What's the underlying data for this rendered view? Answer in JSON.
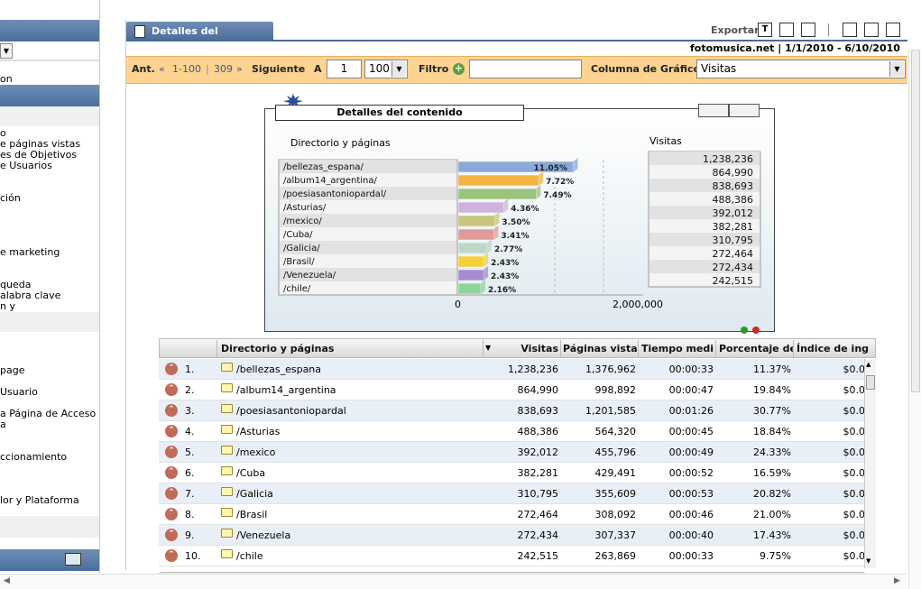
{
  "sidebar": {
    "items": [
      {
        "label": "o",
        "top": 0
      },
      {
        "label": "e páginas vistas"
      },
      {
        "label": "es de Objetivos"
      },
      {
        "label": "e Usuarios"
      },
      {
        "label": "ción"
      },
      {
        "label": "e marketing"
      },
      {
        "label": "queda"
      },
      {
        "label": "alabra clave"
      },
      {
        "label": "n y"
      },
      {
        "label": "page"
      },
      {
        "label": "Usuario"
      },
      {
        "label": "a Página de Acceso"
      },
      {
        "label": "a"
      },
      {
        "label": "ccionamiento"
      },
      {
        "label": "lor y Plataforma"
      }
    ],
    "top_label": "on"
  },
  "header": {
    "tab_title": "Detalles del contenido",
    "export_label": "Exportar",
    "site": "fotomusica.net",
    "date_range": "1/1/2010 - 6/10/2010"
  },
  "toolbar": {
    "prev_label": "Ant.",
    "range_label": "1-100",
    "total": "309",
    "next_label": "Siguiente",
    "goto_label": "A",
    "goto_value": "1",
    "page_size": "100",
    "filter_label": "Filtro",
    "filter_value": "",
    "chart_column_label": "Columna de Gráfico",
    "chart_column_value": "Visitas"
  },
  "chart_data": {
    "type": "bar",
    "title": "Detalles del contenido",
    "xlabel": "Directorio y páginas",
    "ylabel": "Visitas",
    "axis_min_label": "0",
    "axis_max_label": "2,000,000",
    "xlim": [
      0,
      2000000
    ],
    "categories": [
      "/bellezas_espana/",
      "/album14_argentina/",
      "/poesiasantoniopardal/",
      "/Asturias/",
      "/mexico/",
      "/Cuba/",
      "/Galicia/",
      "/Brasil/",
      "/Venezuela/",
      "/chile/"
    ],
    "values": [
      1238236,
      864990,
      838693,
      488386,
      392012,
      382281,
      310795,
      272464,
      272434,
      242515
    ],
    "value_labels": [
      "1,238,236",
      "864,990",
      "838,693",
      "488,386",
      "392,012",
      "382,281",
      "310,795",
      "272,464",
      "272,434",
      "242,515"
    ],
    "percent_labels": [
      "11.05%",
      "7.72%",
      "7.49%",
      "4.36%",
      "3.50%",
      "3.41%",
      "2.77%",
      "2.43%",
      "2.43%",
      "2.16%"
    ],
    "colors": [
      "#8aa9d8",
      "#f4b440",
      "#9cc37a",
      "#cfb3dc",
      "#c9c57c",
      "#e09a98",
      "#bcd8c8",
      "#f5cf3a",
      "#a58bd0",
      "#8fd49a"
    ]
  },
  "table": {
    "columns": [
      "Directorio y páginas",
      "Visitas",
      "Páginas vistas",
      "Tiempo medio",
      "Porcentaje de",
      "Índice de ingr"
    ],
    "rows": [
      {
        "n": "1.",
        "page": "/bellezas_espana",
        "visits": "1,238,236",
        "pv": "1,376,962",
        "time": "00:00:33",
        "pct": "11.37%",
        "idx": "$0.0"
      },
      {
        "n": "2.",
        "page": "/album14_argentina",
        "visits": "864,990",
        "pv": "998,892",
        "time": "00:00:47",
        "pct": "19.84%",
        "idx": "$0.0"
      },
      {
        "n": "3.",
        "page": "/poesiasantoniopardal",
        "visits": "838,693",
        "pv": "1,201,585",
        "time": "00:01:26",
        "pct": "30.77%",
        "idx": "$0.0"
      },
      {
        "n": "4.",
        "page": "/Asturias",
        "visits": "488,386",
        "pv": "564,320",
        "time": "00:00:45",
        "pct": "18.84%",
        "idx": "$0.0"
      },
      {
        "n": "5.",
        "page": "/mexico",
        "visits": "392,012",
        "pv": "455,796",
        "time": "00:00:49",
        "pct": "24.33%",
        "idx": "$0.0"
      },
      {
        "n": "6.",
        "page": "/Cuba",
        "visits": "382,281",
        "pv": "429,491",
        "time": "00:00:52",
        "pct": "16.59%",
        "idx": "$0.0"
      },
      {
        "n": "7.",
        "page": "/Galicia",
        "visits": "310,795",
        "pv": "355,609",
        "time": "00:00:53",
        "pct": "20.82%",
        "idx": "$0.0"
      },
      {
        "n": "8.",
        "page": "/Brasil",
        "visits": "272,464",
        "pv": "308,092",
        "time": "00:00:46",
        "pct": "21.00%",
        "idx": "$0.0"
      },
      {
        "n": "9.",
        "page": "/Venezuela",
        "visits": "272,434",
        "pv": "307,337",
        "time": "00:00:40",
        "pct": "17.43%",
        "idx": "$0.0"
      },
      {
        "n": "10.",
        "page": "/chile",
        "visits": "242,515",
        "pv": "263,869",
        "time": "00:00:33",
        "pct": "9.75%",
        "idx": "$0.0"
      }
    ]
  }
}
